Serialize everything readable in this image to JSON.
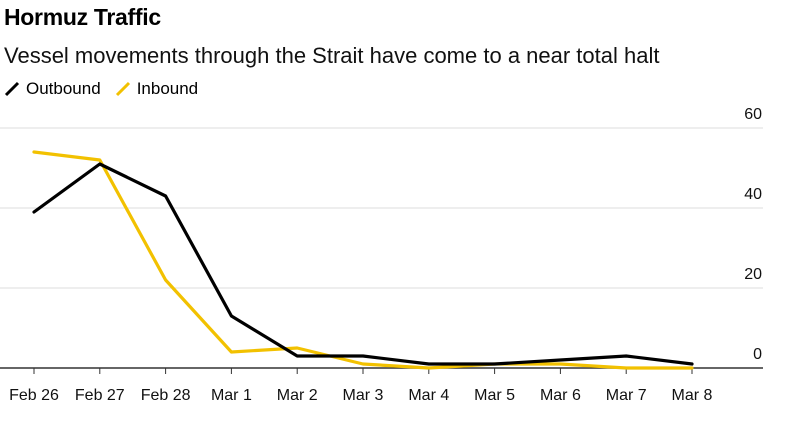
{
  "header": {
    "title": "Hormuz Traffic",
    "subtitle": "Vessel movements through the Strait have come to a near total halt"
  },
  "colors": {
    "outbound": "#000000",
    "inbound": "#f2c100",
    "grid": "#dddddd",
    "axis": "#333333"
  },
  "chart_data": {
    "type": "line",
    "title": "Hormuz Traffic",
    "subtitle": "Vessel movements through the Strait have come to a near total halt",
    "xlabel": "",
    "ylabel": "",
    "categories": [
      "Feb 26",
      "Feb 27",
      "Feb 28",
      "Mar 1",
      "Mar 2",
      "Mar 3",
      "Mar 4",
      "Mar 5",
      "Mar 6",
      "Mar 7",
      "Mar 8"
    ],
    "series": [
      {
        "name": "Outbound",
        "color": "#000000",
        "values": [
          39,
          51,
          43,
          13,
          3,
          3,
          1,
          1,
          2,
          3,
          1
        ]
      },
      {
        "name": "Inbound",
        "color": "#f2c100",
        "values": [
          54,
          52,
          22,
          4,
          5,
          1,
          0,
          1,
          1,
          0,
          0
        ]
      }
    ],
    "ylim": [
      0,
      60
    ],
    "yticks": [
      0,
      20,
      40,
      60
    ],
    "ytick_labels": [
      "0",
      "20",
      "40",
      "60"
    ],
    "grid": true,
    "y_axis_side": "right",
    "legend_position": "top-left"
  }
}
